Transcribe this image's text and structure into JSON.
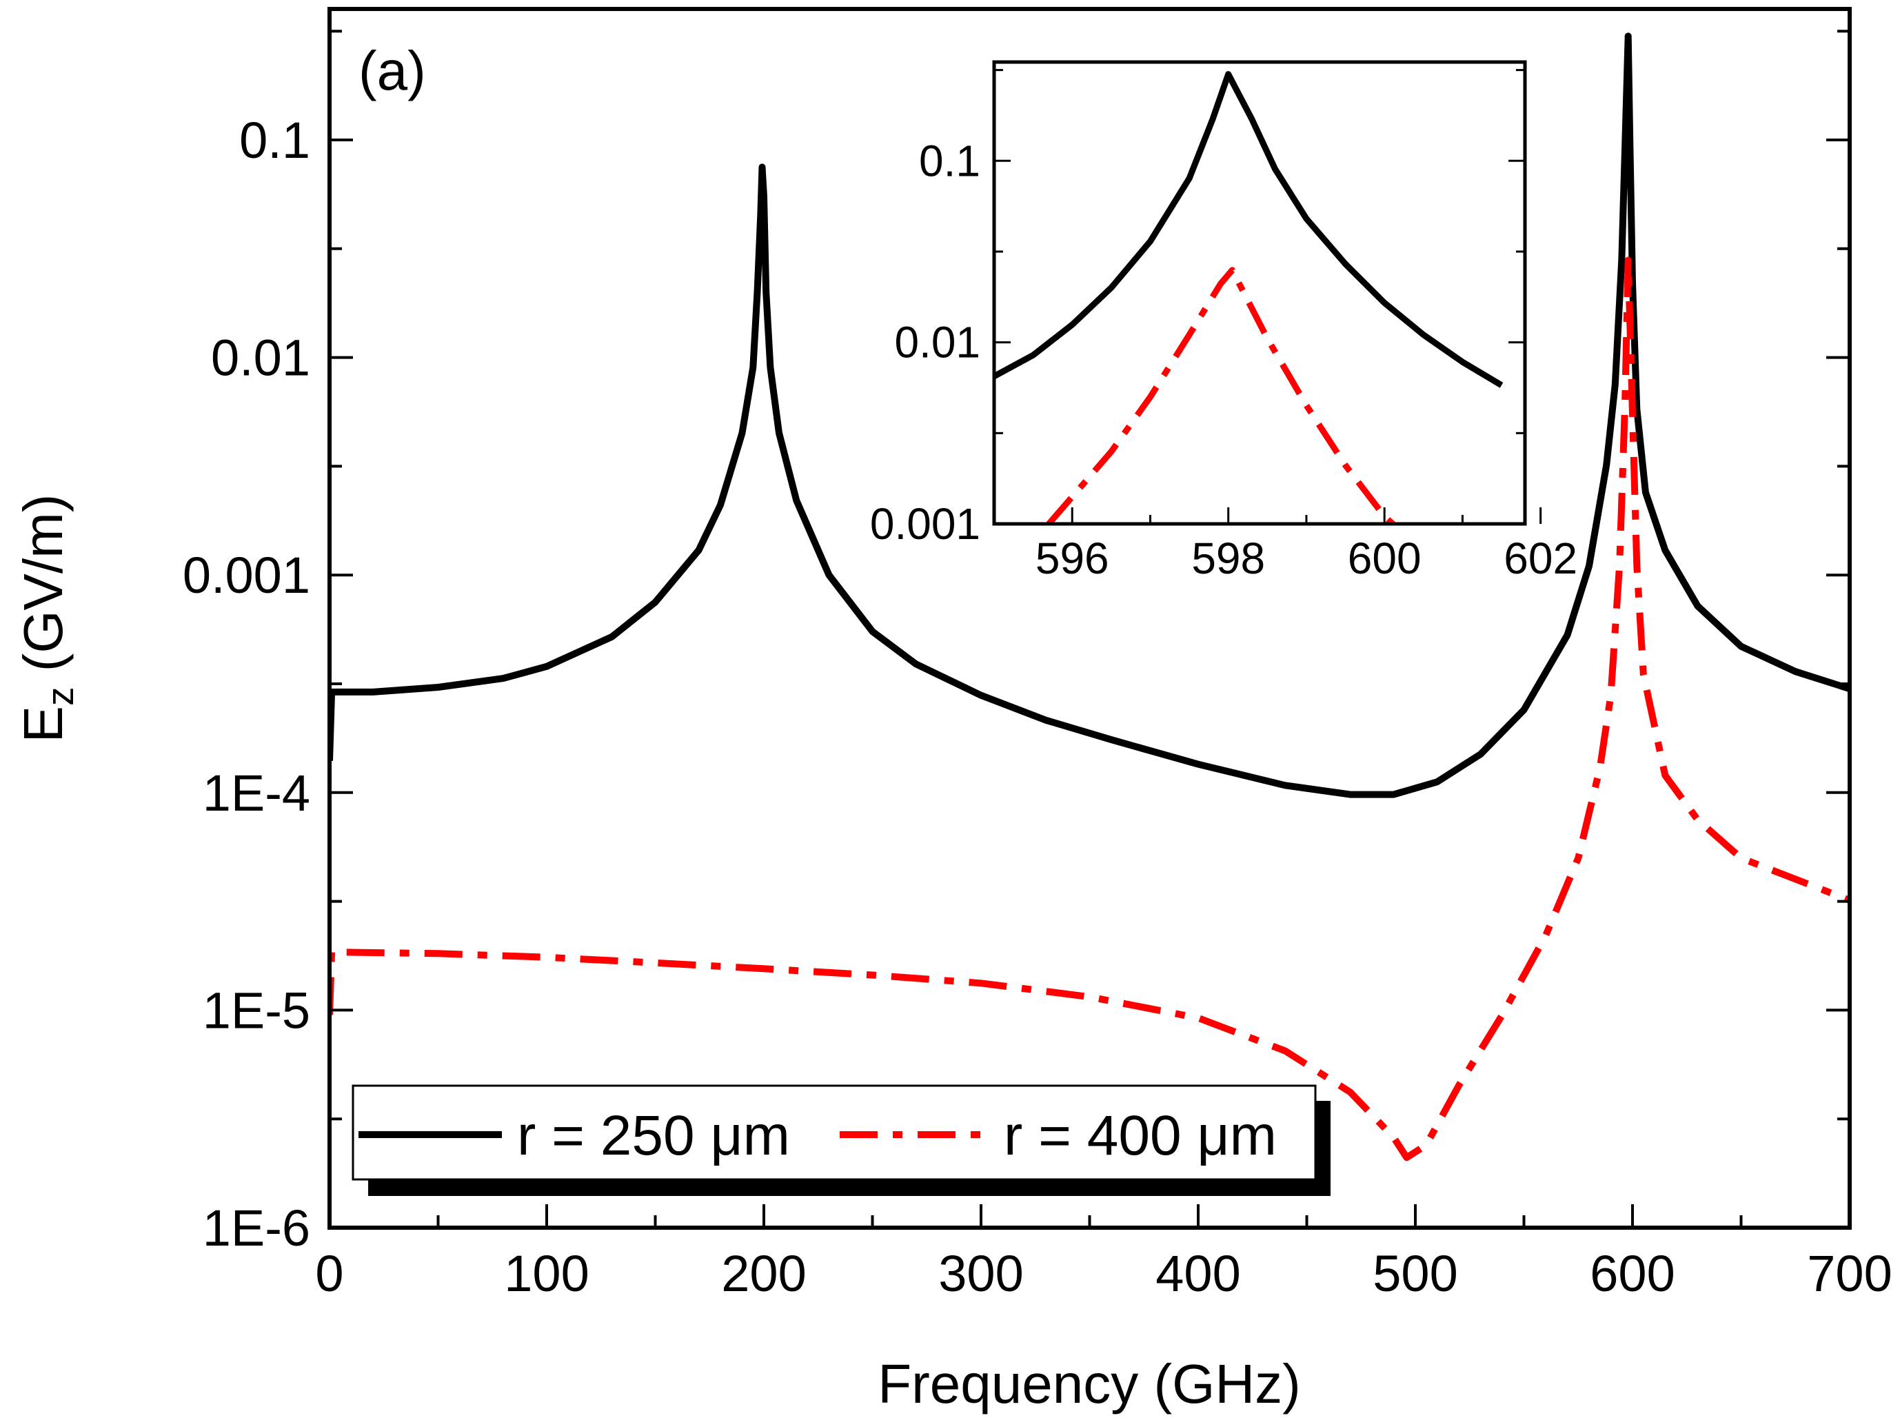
{
  "chart_data": [
    {
      "type": "line",
      "panel_label": "(a)",
      "xlabel": "Frequency (GHz)",
      "ylabel": "E",
      "ylabel_subscript": "z",
      "ylabel_unit": " (GV/m)",
      "xscale": "linear",
      "yscale": "log",
      "xlim": [
        0,
        700
      ],
      "ylim": [
        1e-06,
        0.4
      ],
      "grid": false,
      "legend_position": "bottom-left",
      "x_ticks": [
        {
          "value": 0,
          "label": "0"
        },
        {
          "value": 100,
          "label": "100"
        },
        {
          "value": 200,
          "label": "200"
        },
        {
          "value": 300,
          "label": "300"
        },
        {
          "value": 400,
          "label": "400"
        },
        {
          "value": 500,
          "label": "500"
        },
        {
          "value": 600,
          "label": "600"
        },
        {
          "value": 700,
          "label": "700"
        }
      ],
      "y_ticks": [
        {
          "value": 1e-06,
          "label": "1E-6"
        },
        {
          "value": 1e-05,
          "label": "1E-5"
        },
        {
          "value": 0.0001,
          "label": "1E-4"
        },
        {
          "value": 0.001,
          "label": "0.001"
        },
        {
          "value": 0.01,
          "label": "0.01"
        },
        {
          "value": 0.1,
          "label": "0.1"
        }
      ],
      "series": [
        {
          "name": "r = 250 μm",
          "color": "#000000",
          "style": "solid",
          "points": [
            [
              0,
              0.00014
            ],
            [
              1,
              0.00029
            ],
            [
              20,
              0.00029
            ],
            [
              50,
              0.000305
            ],
            [
              80,
              0.000335
            ],
            [
              100,
              0.00038
            ],
            [
              130,
              0.00052
            ],
            [
              150,
              0.00075
            ],
            [
              170,
              0.0013
            ],
            [
              180,
              0.0021
            ],
            [
              190,
              0.0045
            ],
            [
              195,
              0.009
            ],
            [
              197,
              0.02
            ],
            [
              198.5,
              0.045
            ],
            [
              199.2,
              0.075
            ],
            [
              200,
              0.055
            ],
            [
              201,
              0.02
            ],
            [
              203,
              0.009
            ],
            [
              207,
              0.0045
            ],
            [
              215,
              0.0022
            ],
            [
              230,
              0.001
            ],
            [
              250,
              0.00055
            ],
            [
              270,
              0.00039
            ],
            [
              300,
              0.00028
            ],
            [
              330,
              0.000215
            ],
            [
              360,
              0.000175
            ],
            [
              400,
              0.000135
            ],
            [
              440,
              0.000108
            ],
            [
              470,
              9.8e-05
            ],
            [
              490,
              9.8e-05
            ],
            [
              510,
              0.000112
            ],
            [
              530,
              0.00015
            ],
            [
              550,
              0.00024
            ],
            [
              570,
              0.00053
            ],
            [
              580,
              0.0011
            ],
            [
              588,
              0.0032
            ],
            [
              592,
              0.0075
            ],
            [
              595,
              0.028
            ],
            [
              596.5,
              0.09
            ],
            [
              597.5,
              0.2
            ],
            [
              598,
              0.3
            ],
            [
              598.8,
              0.1
            ],
            [
              600,
              0.022
            ],
            [
              602,
              0.0058
            ],
            [
              606,
              0.0024
            ],
            [
              615,
              0.0013
            ],
            [
              630,
              0.00072
            ],
            [
              650,
              0.00047
            ],
            [
              675,
              0.00036
            ],
            [
              700,
              0.0003
            ]
          ]
        },
        {
          "name": "r = 400 μm",
          "color": "#ff0000",
          "style": "dash-dot",
          "points": [
            [
              0,
              9.5e-06
            ],
            [
              1,
              1.85e-05
            ],
            [
              50,
              1.82e-05
            ],
            [
              100,
              1.75e-05
            ],
            [
              150,
              1.65e-05
            ],
            [
              200,
              1.55e-05
            ],
            [
              250,
              1.45e-05
            ],
            [
              300,
              1.33e-05
            ],
            [
              350,
              1.15e-05
            ],
            [
              400,
              9.2e-06
            ],
            [
              440,
              6.5e-06
            ],
            [
              470,
              4.2e-06
            ],
            [
              490,
              2.6e-06
            ],
            [
              496,
              2.1e-06
            ],
            [
              505,
              2.4e-06
            ],
            [
              520,
              4.5e-06
            ],
            [
              540,
              9.5e-06
            ],
            [
              560,
              2.2e-05
            ],
            [
              575,
              5e-05
            ],
            [
              585,
              0.00013
            ],
            [
              590,
              0.00028
            ],
            [
              594,
              0.0011
            ],
            [
              596.5,
              0.006
            ],
            [
              598,
              0.028
            ],
            [
              600,
              0.0055
            ],
            [
              602,
              0.0011
            ],
            [
              605,
              0.00035
            ],
            [
              615,
              0.00012
            ],
            [
              630,
              7.5e-05
            ],
            [
              650,
              5e-05
            ],
            [
              675,
              4e-05
            ],
            [
              700,
              3.2e-05
            ]
          ]
        }
      ]
    },
    {
      "type": "line",
      "role": "inset",
      "xscale": "linear",
      "yscale": "log",
      "xlim": [
        595,
        601.8
      ],
      "ylim": [
        0.001,
        0.35
      ],
      "x_ticks": [
        {
          "value": 596,
          "label": "596"
        },
        {
          "value": 598,
          "label": "598"
        },
        {
          "value": 600,
          "label": "600"
        },
        {
          "value": 602,
          "label": "602"
        }
      ],
      "y_ticks": [
        {
          "value": 0.001,
          "label": "0.001"
        },
        {
          "value": 0.01,
          "label": "0.01"
        },
        {
          "value": 0.1,
          "label": "0.1"
        }
      ],
      "series": [
        {
          "name": "r = 250 μm",
          "color": "#000000",
          "style": "solid",
          "points": [
            [
              595,
              0.0065
            ],
            [
              595.5,
              0.0085
            ],
            [
              596,
              0.0125
            ],
            [
              596.5,
              0.02
            ],
            [
              597,
              0.036
            ],
            [
              597.5,
              0.08
            ],
            [
              597.8,
              0.17
            ],
            [
              598,
              0.3
            ],
            [
              598.3,
              0.17
            ],
            [
              598.6,
              0.09
            ],
            [
              599,
              0.048
            ],
            [
              599.5,
              0.027
            ],
            [
              600,
              0.0165
            ],
            [
              600.5,
              0.011
            ],
            [
              601,
              0.0078
            ],
            [
              601.5,
              0.0058
            ]
          ]
        },
        {
          "name": "r = 400 μm",
          "color": "#ff0000",
          "style": "dash-dot",
          "points": [
            [
              595.7,
              0.001
            ],
            [
              596.5,
              0.0025
            ],
            [
              597,
              0.005
            ],
            [
              597.5,
              0.011
            ],
            [
              597.9,
              0.021
            ],
            [
              598.05,
              0.025
            ],
            [
              598.5,
              0.0105
            ],
            [
              599,
              0.0045
            ],
            [
              599.5,
              0.0021
            ],
            [
              600,
              0.0011
            ],
            [
              600.2,
              0.00092
            ]
          ]
        }
      ]
    }
  ]
}
